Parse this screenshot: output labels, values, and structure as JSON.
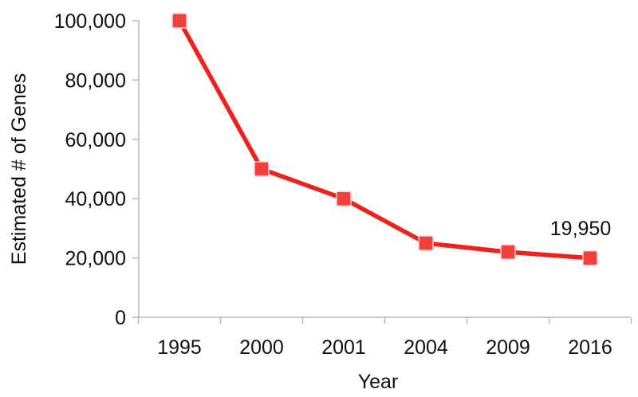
{
  "chart_data": {
    "type": "line",
    "x": [
      "1995",
      "2000",
      "2001",
      "2004",
      "2009",
      "2016"
    ],
    "series": [
      {
        "values": [
          100000,
          50000,
          40000,
          25000,
          22000,
          19950
        ]
      }
    ],
    "xlabel": "Year",
    "ylabel": "Estimated # of Genes",
    "ylim": [
      0,
      100000
    ],
    "yticks": [
      "0",
      "20,000",
      "40,000",
      "60,000",
      "80,000",
      "100,000"
    ],
    "annotations": [
      {
        "x": "2016",
        "text": "19,950"
      }
    ],
    "grid": false,
    "legend": "none",
    "colors": {
      "series": "#f0211d",
      "marker_fill": "#f2413d",
      "marker_edge": "#ffd0cc",
      "axis": "#b9b9b9"
    }
  }
}
